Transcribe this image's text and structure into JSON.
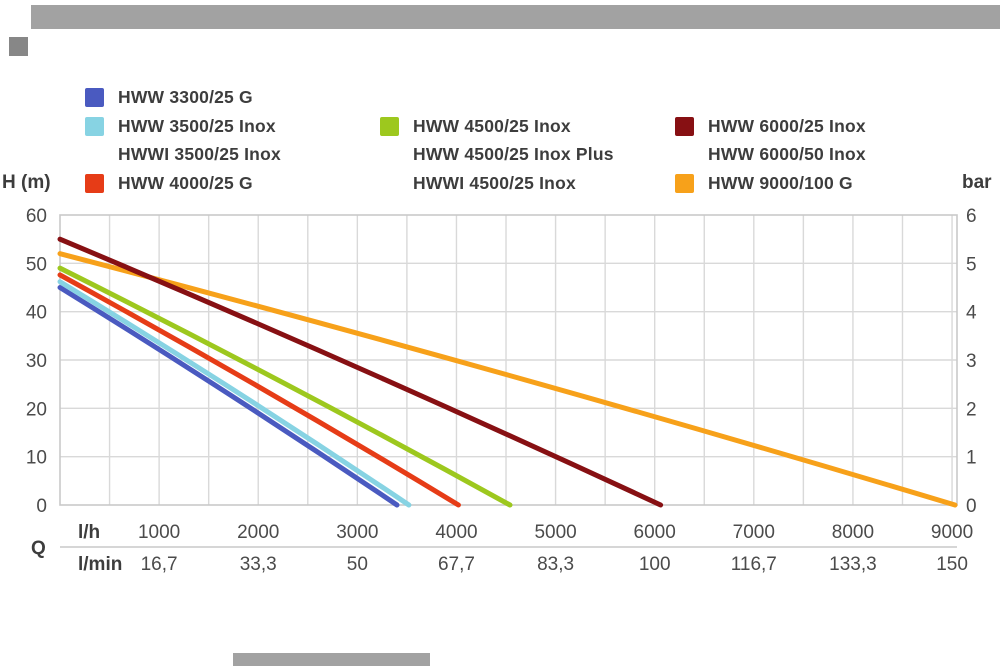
{
  "fragments": {
    "top_bar_color": "#a2a2a2",
    "top_square_color": "#878787",
    "bottom_bar_color": "#a2a2a2"
  },
  "legend": {
    "columns": [
      {
        "items": [
          {
            "label": "HWW 3300/25 G",
            "swatch": "#4a5ac0"
          },
          {
            "label": "HWW 3500/25 Inox",
            "swatch": "#87d3e3"
          },
          {
            "label": "HWWI 3500/25 Inox",
            "swatch": null
          },
          {
            "label": "HWW 4000/25 G",
            "swatch": "#e63c17"
          }
        ]
      },
      {
        "items": [
          {
            "label": "HWW 4500/25 Inox",
            "swatch": "#9dc81e"
          },
          {
            "label": "HWW 4500/25 Inox Plus",
            "swatch": null
          },
          {
            "label": "HWWI 4500/25 Inox",
            "swatch": null
          }
        ]
      },
      {
        "items": [
          {
            "label": "HWW 6000/25 Inox",
            "swatch": "#871013"
          },
          {
            "label": "HWW 6000/50 Inox",
            "swatch": null
          },
          {
            "label": "HWW 9000/100 G",
            "swatch": "#f7a11a"
          }
        ]
      }
    ]
  },
  "axes": {
    "left_label": "H (m)",
    "right_label": "bar",
    "q_label": "Q",
    "left_ticks": [
      "60",
      "50",
      "40",
      "30",
      "20",
      "10",
      "0"
    ],
    "right_ticks": [
      "6",
      "5",
      "4",
      "3",
      "2",
      "1",
      "0"
    ],
    "x_rows": [
      {
        "label": "l/h",
        "values": [
          "1000",
          "2000",
          "3000",
          "4000",
          "5000",
          "6000",
          "7000",
          "8000",
          "9000"
        ]
      },
      {
        "label": "l/min",
        "values": [
          "16,7",
          "33,3",
          "50",
          "67,7",
          "83,3",
          "100",
          "116,7",
          "133,3",
          "150"
        ]
      }
    ]
  },
  "chart_data": {
    "type": "line",
    "title": "",
    "ylabel_left": "H (m)",
    "ylabel_right": "bar",
    "xlabel_rows": [
      "l/h",
      "l/min"
    ],
    "xlim_lh": [
      0,
      9050
    ],
    "ylim_m": [
      0,
      60
    ],
    "ylim_bar": [
      0,
      6
    ],
    "x_major_tick_step_lh": 1000,
    "x_minor_grid_step_lh": 500,
    "y_grid_step_m": 10,
    "grid": true,
    "grid_color": "#d9d9d9",
    "frame_color": "#c9c9c9",
    "series": [
      {
        "name": "HWW 3300/25 G",
        "models": [
          "HWW 3300/25 G"
        ],
        "color": "#4a5ac0",
        "points": [
          [
            0,
            45
          ],
          [
            1700,
            23
          ],
          [
            3400,
            0
          ]
        ]
      },
      {
        "name": "HWW 3500/25 Inox",
        "models": [
          "HWW 3500/25 Inox",
          "HWWI 3500/25 Inox"
        ],
        "color": "#87d3e3",
        "points": [
          [
            0,
            46.2
          ],
          [
            1760,
            23.7
          ],
          [
            3520,
            0
          ]
        ]
      },
      {
        "name": "HWW 4000/25 G",
        "models": [
          "HWW 4000/25 G"
        ],
        "color": "#e63c17",
        "points": [
          [
            0,
            47.6
          ],
          [
            2010,
            24.4
          ],
          [
            4020,
            0
          ]
        ]
      },
      {
        "name": "HWW 4500/25 Inox",
        "models": [
          "HWW 4500/25 Inox",
          "HWW 4500/25 Inox Plus",
          "HWWI 4500/25 Inox"
        ],
        "color": "#9dc81e",
        "points": [
          [
            0,
            49
          ],
          [
            2270,
            25.1
          ],
          [
            4540,
            0
          ]
        ]
      },
      {
        "name": "HWW 9000/100 G",
        "models": [
          "HWW 9000/100 G"
        ],
        "color": "#f7a11a",
        "points": [
          [
            0,
            52
          ],
          [
            4500,
            27
          ],
          [
            9030,
            0
          ]
        ]
      },
      {
        "name": "HWW 6000/25 Inox",
        "models": [
          "HWW 6000/25 Inox",
          "HWW 6000/50 Inox"
        ],
        "color": "#871013",
        "points": [
          [
            0,
            55
          ],
          [
            3030,
            28.2
          ],
          [
            6060,
            0
          ]
        ]
      }
    ]
  }
}
